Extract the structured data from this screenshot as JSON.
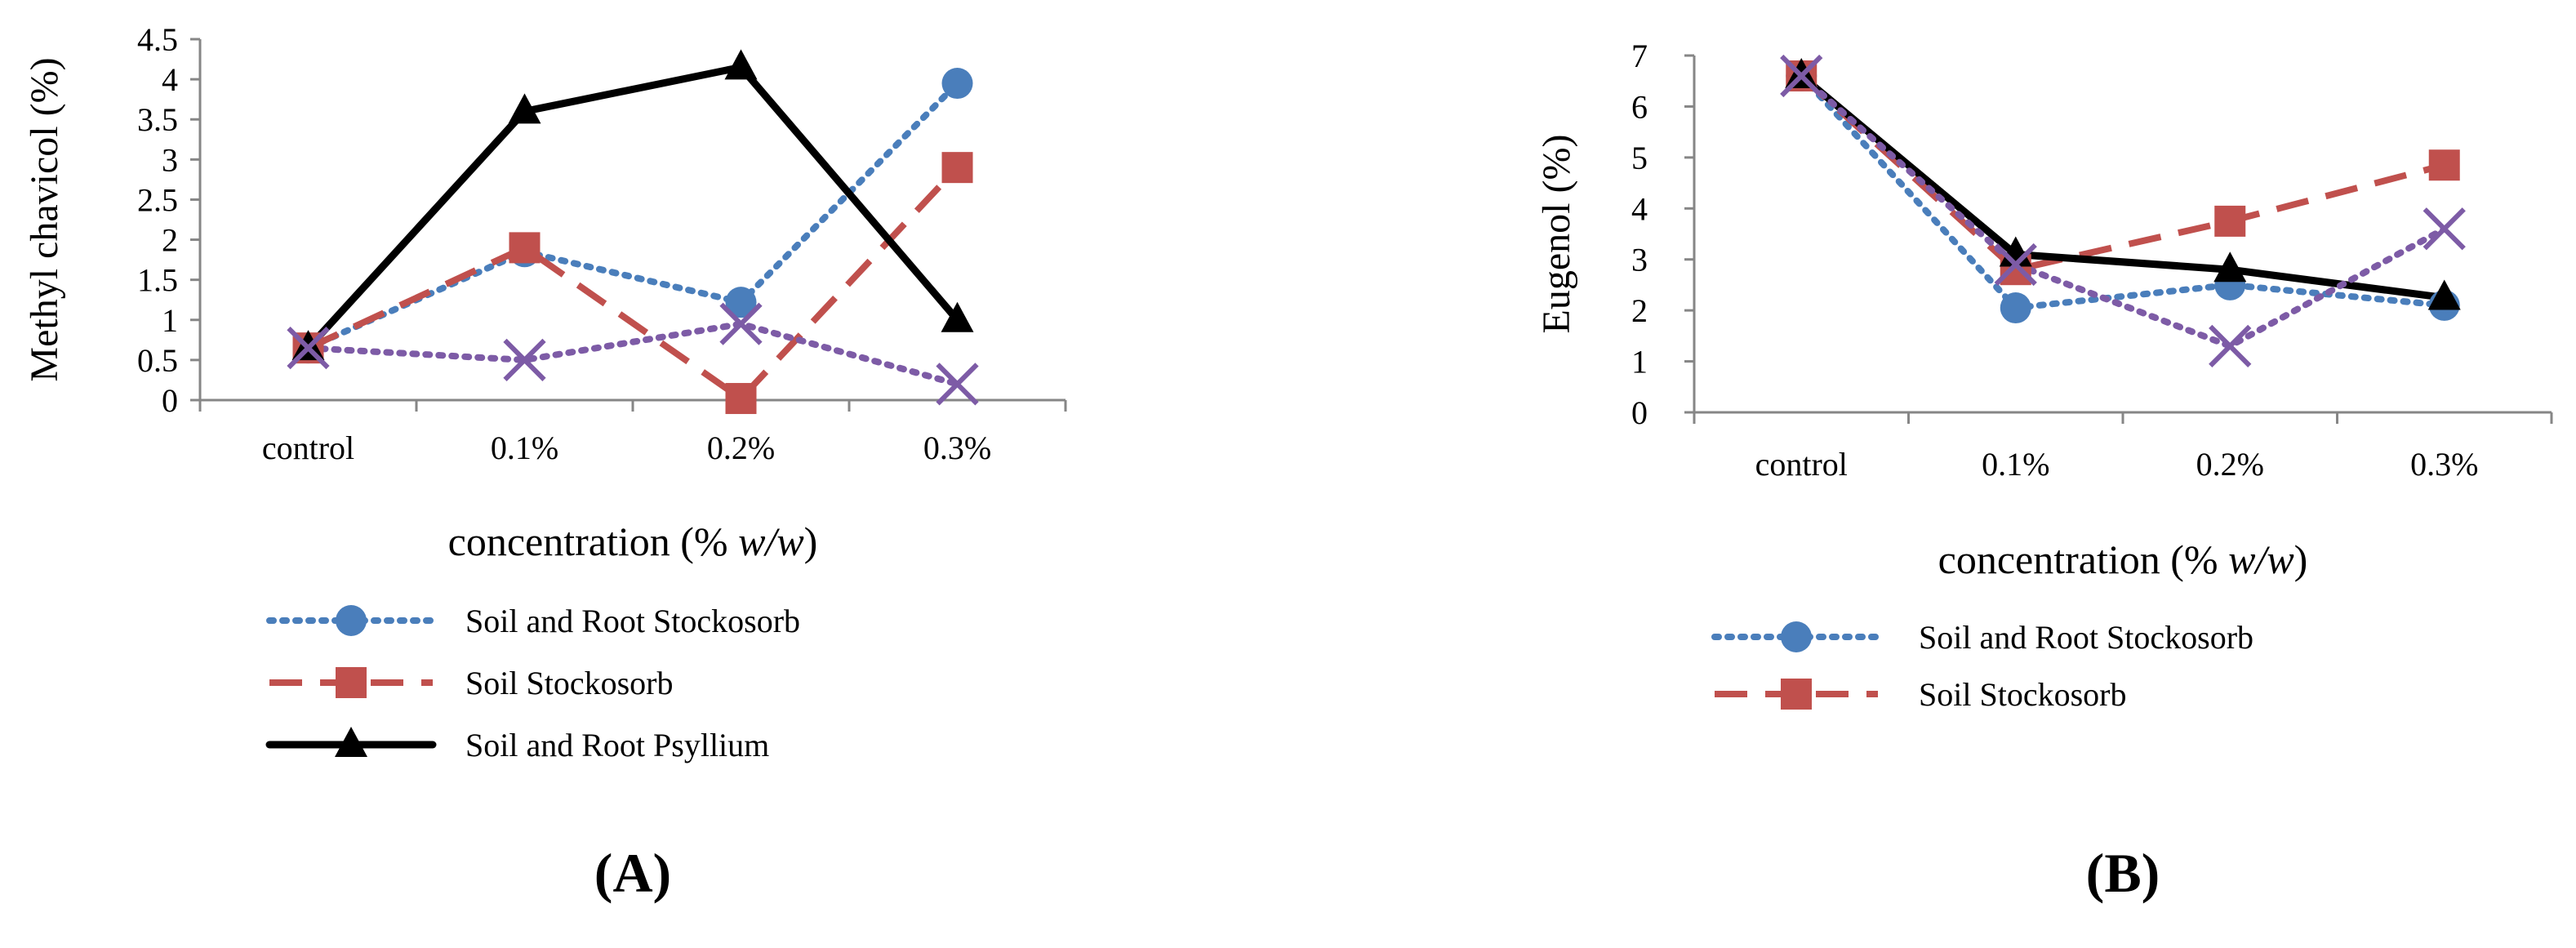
{
  "colors": {
    "blue": "#4a7ebb",
    "red": "#c0504d",
    "black": "#000000",
    "purple": "#7d5ba6",
    "axis": "#868686"
  },
  "chart_data": [
    {
      "type": "line",
      "panel_label": "(A)",
      "ylabel": "Methyl chavicol (%)",
      "xlabel": "concentration (% w/w)",
      "xlabel_text": "concentration (% ",
      "xlabel_italic": "w/w",
      "xlabel_close": ")",
      "categories": [
        "control",
        "0.1%",
        "0.2%",
        "0.3%"
      ],
      "ylim": [
        0,
        4.5
      ],
      "yticks": [
        "0",
        "0.5",
        "1",
        "1.5",
        "2",
        "2.5",
        "3",
        "3.5",
        "4",
        "4.5"
      ],
      "legend": [
        "Soil and Root Stockosorb",
        "Soil  Stockosorb",
        "Soil and Root Psyllium"
      ],
      "series": [
        {
          "name": "Soil and Root Stockosorb",
          "style": "dotted",
          "marker": "circle",
          "color": "blue",
          "values": [
            0.65,
            1.85,
            1.22,
            3.95
          ]
        },
        {
          "name": "Soil  Stockosorb",
          "style": "dashed",
          "marker": "square",
          "color": "red",
          "values": [
            0.65,
            1.9,
            0.02,
            2.9
          ]
        },
        {
          "name": "Soil and Root Psyllium",
          "style": "solid",
          "marker": "triangle",
          "color": "black",
          "values": [
            0.65,
            3.6,
            4.15,
            1.0
          ]
        },
        {
          "name": "",
          "style": "dotted",
          "marker": "x",
          "color": "purple",
          "values": [
            0.65,
            0.5,
            0.95,
            0.2
          ]
        }
      ]
    },
    {
      "type": "line",
      "panel_label": "(B)",
      "ylabel": "Eugenol  (%)",
      "xlabel": "concentration (% w/w)",
      "xlabel_text": "concentration (% ",
      "xlabel_italic": "w/w",
      "xlabel_close": ")",
      "categories": [
        "control",
        "0.1%",
        "0.2%",
        "0.3%"
      ],
      "ylim": [
        0,
        7
      ],
      "yticks": [
        "0",
        "1",
        "2",
        "3",
        "4",
        "5",
        "6",
        "7"
      ],
      "legend": [
        "Soil and Root Stockosorb",
        "Soil  Stockosorb"
      ],
      "series": [
        {
          "name": "Soil and Root Stockosorb",
          "style": "dotted",
          "marker": "circle",
          "color": "blue",
          "values": [
            6.6,
            2.05,
            2.5,
            2.1
          ]
        },
        {
          "name": "Soil  Stockosorb",
          "style": "dashed",
          "marker": "square",
          "color": "red",
          "values": [
            6.6,
            2.8,
            3.75,
            4.85
          ]
        },
        {
          "name": "",
          "style": "solid",
          "marker": "triangle",
          "color": "black",
          "values": [
            6.6,
            3.1,
            2.8,
            2.25
          ]
        },
        {
          "name": "",
          "style": "dotted",
          "marker": "x",
          "color": "purple",
          "values": [
            6.6,
            2.9,
            1.3,
            3.6
          ]
        }
      ]
    }
  ]
}
